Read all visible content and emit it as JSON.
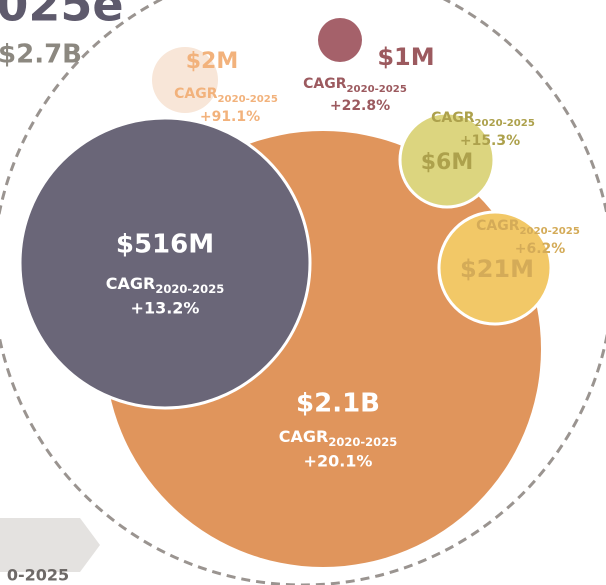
{
  "title": "025e",
  "total": "$2.7B",
  "footer": "0-2025",
  "cagr_label": "CAGR",
  "cagr_period": "2020-2025",
  "nodes": [
    {
      "value": "$2.1B",
      "cagr": "+20.1%"
    },
    {
      "value": "$516M",
      "cagr": "+13.2%"
    },
    {
      "value": "$2M",
      "cagr": "+91.1%"
    },
    {
      "value": "$1M",
      "cagr": "+22.8%"
    },
    {
      "value": "$6M",
      "cagr": "+15.3%"
    },
    {
      "value": "$21M",
      "cagr": "+6.2%"
    }
  ]
}
